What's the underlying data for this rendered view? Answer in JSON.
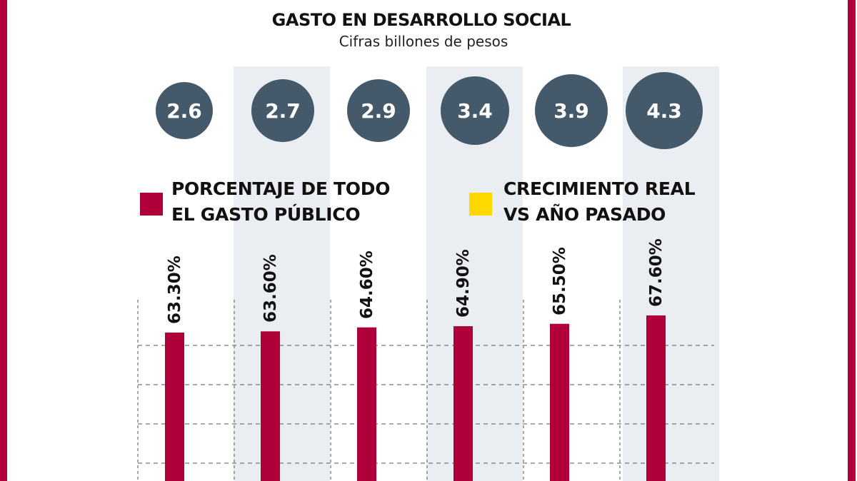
{
  "chart_data": {
    "type": "bar",
    "title": "GASTO EN DESARROLLO SOCIAL",
    "subtitle": "Cifras billones de pesos",
    "amounts": [
      "2.6",
      "2.7",
      "2.9",
      "3.4",
      "3.9",
      "4.3"
    ],
    "series": [
      {
        "name": "PORCENTAJE DE TODO EL GASTO PÚBLICO",
        "color": "#b0003a",
        "values": [
          63.3,
          63.6,
          64.6,
          64.9,
          65.5,
          67.6
        ],
        "labels": [
          "63.30%",
          "63.60%",
          "64.60%",
          "64.90%",
          "65.50%",
          "67.60%"
        ]
      }
    ],
    "legend": [
      {
        "line1": "PORCENTAJE DE TODO",
        "line2": "EL GASTO PÚBLICO",
        "color": "#b0003a"
      },
      {
        "line1": "CRECIMIENTO REAL",
        "line2": "VS AÑO PASADO",
        "color": "#ffd800"
      }
    ],
    "grid": true,
    "colors": {
      "accent": "#b0003a",
      "circle": "#44596a",
      "shade": "#eaeef2"
    }
  }
}
